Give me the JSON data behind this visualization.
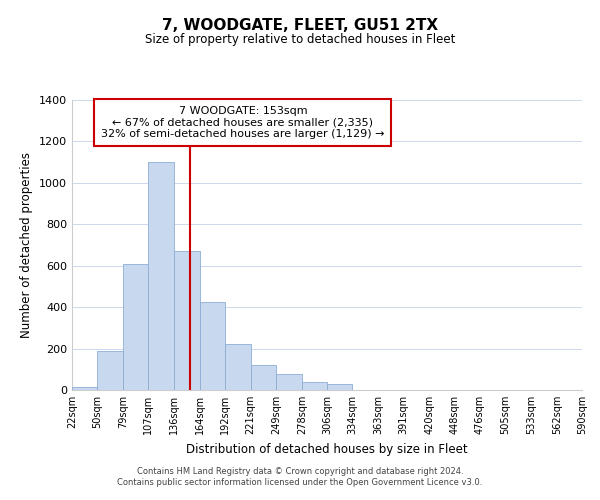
{
  "title": "7, WOODGATE, FLEET, GU51 2TX",
  "subtitle": "Size of property relative to detached houses in Fleet",
  "xlabel": "Distribution of detached houses by size in Fleet",
  "ylabel": "Number of detached properties",
  "bar_color": "#c8d9ef",
  "bar_edge_color": "#8eadd4",
  "vline_x": 153,
  "vline_color": "#cc0000",
  "annotation_title": "7 WOODGATE: 153sqm",
  "annotation_line1": "← 67% of detached houses are smaller (2,335)",
  "annotation_line2": "32% of semi-detached houses are larger (1,129) →",
  "annotation_box_color": "white",
  "annotation_box_edge": "#cc0000",
  "categories": [
    "22sqm",
    "50sqm",
    "79sqm",
    "107sqm",
    "136sqm",
    "164sqm",
    "192sqm",
    "221sqm",
    "249sqm",
    "278sqm",
    "306sqm",
    "334sqm",
    "363sqm",
    "391sqm",
    "420sqm",
    "448sqm",
    "476sqm",
    "505sqm",
    "533sqm",
    "562sqm",
    "590sqm"
  ],
  "bin_edges": [
    22,
    50,
    79,
    107,
    136,
    164,
    192,
    221,
    249,
    278,
    306,
    334,
    363,
    391,
    420,
    448,
    476,
    505,
    533,
    562,
    590
  ],
  "values": [
    15,
    190,
    610,
    1100,
    670,
    425,
    220,
    120,
    78,
    38,
    27,
    0,
    0,
    0,
    0,
    0,
    0,
    0,
    0,
    0
  ],
  "ylim": [
    0,
    1400
  ],
  "yticks": [
    0,
    200,
    400,
    600,
    800,
    1000,
    1200,
    1400
  ],
  "footer1": "Contains HM Land Registry data © Crown copyright and database right 2024.",
  "footer2": "Contains public sector information licensed under the Open Government Licence v3.0."
}
